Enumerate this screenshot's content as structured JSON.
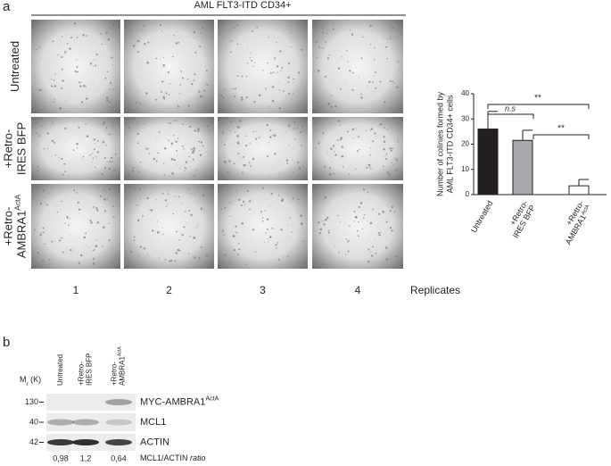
{
  "panel_a": {
    "label": "a",
    "header": "AML FLT3-ITD CD34+",
    "row_labels": [
      [
        {
          "text": "Untreated"
        }
      ],
      [
        {
          "text": "+Retro-"
        },
        {
          "text": "IRES BFP"
        }
      ],
      [
        {
          "text": "+Retro-"
        },
        {
          "text": "AMBRA1",
          "sup": "ActA"
        }
      ]
    ],
    "replicates": [
      "1",
      "2",
      "3",
      "4"
    ],
    "replicates_label": "Replicates"
  },
  "chart_data": {
    "type": "bar",
    "ylabel": [
      "Number of colinies formed by",
      "AML FLT3-ITD CD34+ cells"
    ],
    "categories": [
      [
        {
          "text": "Untreated"
        }
      ],
      [
        {
          "text": "+Retro-"
        },
        {
          "text": "IRES BFP"
        }
      ],
      [
        {
          "text": "+Retro-"
        },
        {
          "text": "AMBRA1",
          "sup": "ActA"
        }
      ]
    ],
    "values": [
      26,
      21.5,
      3.5
    ],
    "errors": [
      7,
      4,
      2.5
    ],
    "colors": [
      "#231f20",
      "#a7a9ac",
      "#ffffff"
    ],
    "ylim": [
      0,
      40
    ],
    "yticks": [
      0,
      10,
      20,
      30,
      40
    ],
    "annotations": [
      "**",
      "n.s",
      "**"
    ]
  },
  "panel_b": {
    "label": "b",
    "mr_label": {
      "text": "M",
      "sub": "r",
      "rest": " (K)"
    },
    "lanes": [
      [
        {
          "text": "Untreated"
        }
      ],
      [
        {
          "text": "+Retro-"
        },
        {
          "text": "IRES BFP"
        }
      ],
      [
        {
          "text": "+Retro-"
        },
        {
          "text": "AMBRA1",
          "sup": "ActA"
        }
      ]
    ],
    "markers": [
      "130",
      "40",
      "42"
    ],
    "proteins": [
      {
        "text": "MYC-AMBRA1",
        "sup": "ActA"
      },
      {
        "text": "MCL1"
      },
      {
        "text": "ACTIN"
      }
    ],
    "ratios": [
      "0,98",
      "1,2",
      "0,64"
    ],
    "ratio_label": {
      "text": "MCL1/ACTIN ",
      "italic": "ratio"
    }
  }
}
